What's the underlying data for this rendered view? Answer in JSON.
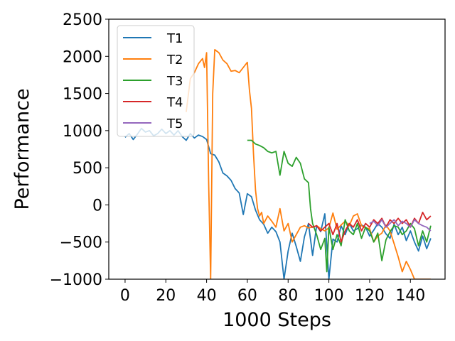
{
  "chart_data": {
    "type": "line",
    "title": "",
    "xlabel": "1000 Steps",
    "ylabel": "Performance",
    "xlim": [
      -8,
      157
    ],
    "ylim": [
      -1000,
      2500
    ],
    "grid": false,
    "legend_position": "top-left",
    "xticks": [
      0,
      20,
      40,
      60,
      80,
      100,
      120,
      140
    ],
    "yticks": [
      -1000,
      -500,
      0,
      500,
      1000,
      1500,
      2000,
      2500
    ],
    "ytick_labels": [
      "−1000",
      "−500",
      "0",
      "500",
      "1000",
      "1500",
      "2000",
      "2500"
    ],
    "series": [
      {
        "name": "T1",
        "color": "#1f77b4",
        "x": [
          0,
          2,
          4,
          6,
          8,
          10,
          12,
          14,
          16,
          18,
          20,
          22,
          24,
          26,
          28,
          30,
          32,
          34,
          36,
          38,
          40,
          42,
          44,
          46,
          48,
          50,
          52,
          54,
          56,
          58,
          60,
          62,
          64,
          66,
          68,
          70,
          72,
          74,
          76,
          78,
          80,
          82,
          84,
          86,
          88,
          90,
          92,
          94,
          96,
          98,
          100,
          102,
          104,
          106,
          108,
          110,
          112,
          114,
          116,
          118,
          120,
          122,
          124,
          126,
          128,
          130,
          132,
          134,
          136,
          138,
          140,
          142,
          144,
          146,
          148,
          150
        ],
        "y": [
          910,
          960,
          880,
          950,
          1030,
          980,
          1000,
          930,
          960,
          1020,
          960,
          1000,
          940,
          1000,
          920,
          870,
          960,
          900,
          940,
          920,
          880,
          690,
          670,
          580,
          430,
          390,
          330,
          220,
          160,
          -130,
          150,
          110,
          -70,
          -200,
          -260,
          -380,
          -300,
          -360,
          -500,
          -1000,
          -620,
          -380,
          -560,
          -760,
          -430,
          -250,
          -680,
          -280,
          -360,
          -120,
          -1000,
          -460,
          -500,
          -280,
          -400,
          -250,
          -350,
          -320,
          -270,
          -300,
          -420,
          -340,
          -250,
          -300,
          -390,
          -450,
          -260,
          -400,
          -300,
          -480,
          -350,
          -500,
          -620,
          -420,
          -590,
          -450
        ]
      },
      {
        "name": "T2",
        "color": "#ff7f0e",
        "x": [
          30,
          32,
          34,
          36,
          38,
          39,
          40,
          41,
          42,
          43,
          44,
          46,
          48,
          50,
          52,
          54,
          56,
          58,
          60,
          61,
          62,
          63,
          64,
          65,
          66,
          67,
          68,
          70,
          72,
          74,
          76,
          78,
          80,
          82,
          84,
          86,
          88,
          90,
          92,
          94,
          96,
          98,
          100,
          102,
          104,
          106,
          108,
          110,
          112,
          114,
          116,
          118,
          120,
          122,
          124,
          126,
          128,
          130,
          132,
          134,
          136,
          138,
          140,
          142,
          144,
          146,
          148,
          150
        ],
        "y": [
          1250,
          1700,
          1780,
          1900,
          1970,
          1850,
          2050,
          300,
          -1000,
          1500,
          2090,
          2050,
          1950,
          1900,
          1800,
          1810,
          1780,
          1850,
          1920,
          1550,
          1300,
          700,
          200,
          -50,
          -150,
          -100,
          -250,
          -150,
          -220,
          -300,
          -50,
          -350,
          -250,
          -500,
          -400,
          -300,
          -280,
          -310,
          -300,
          -280,
          -320,
          -350,
          -310,
          -110,
          -330,
          -270,
          -220,
          -280,
          -150,
          -120,
          -280,
          -310,
          -320,
          -500,
          -420,
          -380,
          -270,
          -350,
          -520,
          -700,
          -900,
          -760,
          -870,
          -1000,
          -1000,
          -1000,
          -1000,
          -1000
        ]
      },
      {
        "name": "T3",
        "color": "#2ca02c",
        "x": [
          60,
          62,
          64,
          66,
          68,
          70,
          72,
          74,
          76,
          78,
          80,
          82,
          84,
          86,
          88,
          90,
          91,
          92,
          94,
          96,
          98,
          99,
          100,
          102,
          104,
          106,
          108,
          110,
          112,
          114,
          116,
          118,
          120,
          122,
          124,
          126,
          128,
          130,
          132,
          134,
          136,
          138,
          140,
          142,
          144,
          146,
          148,
          150
        ],
        "y": [
          870,
          870,
          820,
          800,
          770,
          720,
          700,
          720,
          400,
          720,
          560,
          520,
          640,
          560,
          350,
          300,
          -50,
          -250,
          -400,
          -600,
          -450,
          -900,
          -300,
          -600,
          -400,
          -550,
          -200,
          -350,
          -400,
          -250,
          -450,
          -300,
          -350,
          -500,
          -380,
          -750,
          -470,
          -360,
          -280,
          -300,
          -400,
          -350,
          -250,
          -320,
          -550,
          -350,
          -500,
          -280
        ]
      },
      {
        "name": "T4",
        "color": "#d62728",
        "x": [
          90,
          92,
          94,
          96,
          98,
          100,
          102,
          104,
          106,
          108,
          110,
          112,
          114,
          116,
          118,
          120,
          122,
          124,
          126,
          128,
          130,
          132,
          134,
          136,
          138,
          140,
          142,
          144,
          146,
          148,
          150
        ],
        "y": [
          -250,
          -300,
          -280,
          -350,
          -300,
          -250,
          -400,
          -250,
          -500,
          -350,
          -250,
          -300,
          -200,
          -350,
          -250,
          -300,
          -200,
          -250,
          -180,
          -300,
          -200,
          -250,
          -180,
          -250,
          -200,
          -300,
          -180,
          -250,
          -100,
          -200,
          -150
        ]
      },
      {
        "name": "T5",
        "color": "#9467bd",
        "x": [
          120,
          122,
          124,
          126,
          128,
          130,
          132,
          134,
          136,
          138,
          140,
          142,
          144,
          146,
          148,
          150
        ],
        "y": [
          -250,
          -220,
          -280,
          -200,
          -300,
          -250,
          -200,
          -280,
          -220,
          -250,
          -300,
          -200,
          -250,
          -280,
          -300,
          -350
        ]
      }
    ]
  }
}
